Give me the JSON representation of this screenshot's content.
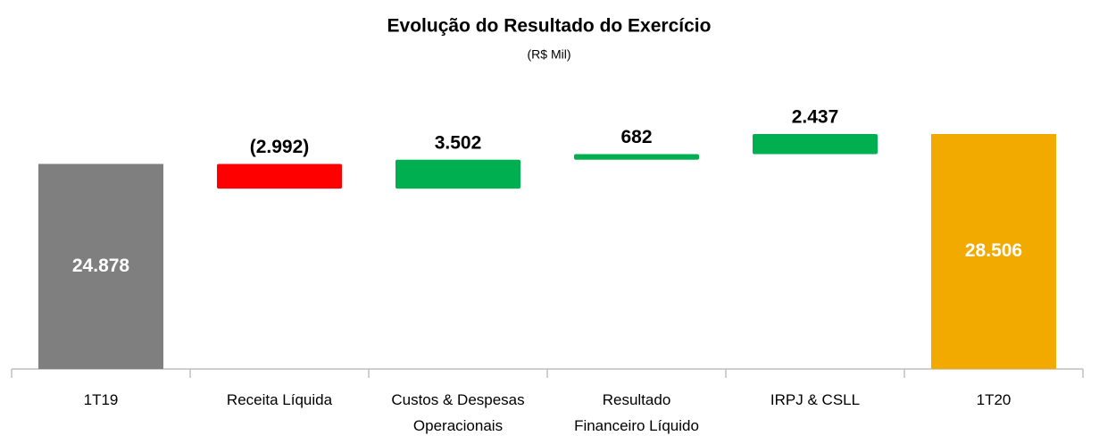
{
  "chart_data": {
    "type": "waterfall",
    "title": "Evolução do Resultado do Exercício",
    "subtitle": "(R$ Mil)",
    "categories": [
      "1T19",
      "Receita Líquida",
      "Custos & Despesas Operacionais",
      "Resultado Financeiro Líquido",
      "IRPJ & CSLL",
      "1T20"
    ],
    "values": [
      24878,
      -2992,
      3502,
      682,
      2437,
      28506
    ],
    "value_labels": [
      "24.878",
      "(2.992)",
      "3.502",
      "682",
      "2.437",
      "28.506"
    ],
    "is_total": [
      true,
      false,
      false,
      false,
      false,
      true
    ],
    "colors": [
      "#7f7f7f",
      "#ff0000",
      "#00b050",
      "#00b050",
      "#00b050",
      "#f2a900"
    ]
  }
}
